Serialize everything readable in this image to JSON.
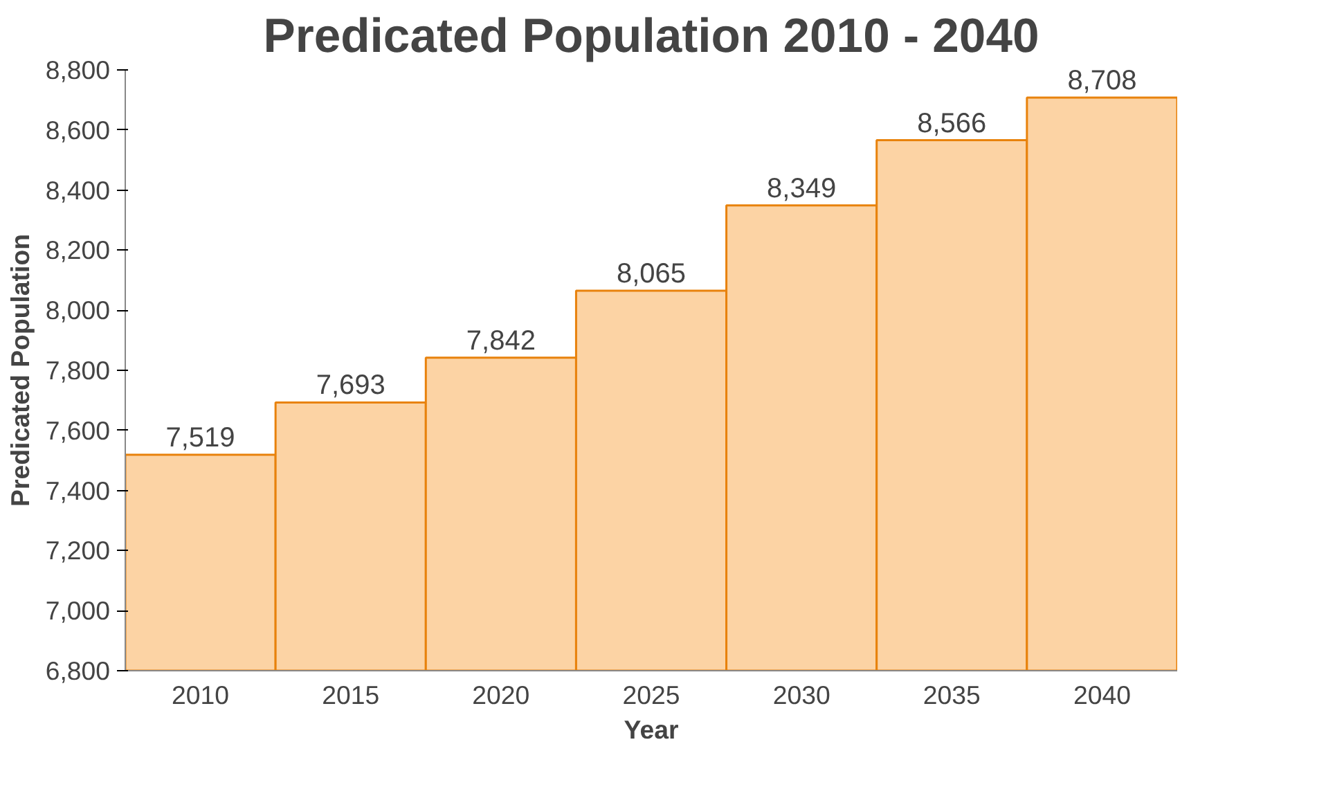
{
  "chart_data": {
    "type": "bar",
    "title": "Predicated Population 2010 - 2040",
    "xlabel": "Year",
    "ylabel": "Predicated Population",
    "categories": [
      "2010",
      "2015",
      "2020",
      "2025",
      "2030",
      "2035",
      "2040"
    ],
    "values": [
      7519,
      7693,
      7842,
      8065,
      8349,
      8566,
      8708
    ],
    "color": "#fcd3a4",
    "ylim": [
      6800,
      8800
    ],
    "yticks": [
      {
        "value": 6800,
        "label": "6,800"
      },
      {
        "value": 7000,
        "label": "7,000"
      },
      {
        "value": 7200,
        "label": "7,200"
      },
      {
        "value": 7400,
        "label": "7,400"
      },
      {
        "value": 7600,
        "label": "7,600"
      },
      {
        "value": 7800,
        "label": "7,800"
      },
      {
        "value": 8000,
        "label": "8,000"
      },
      {
        "value": 8200,
        "label": "8,200"
      },
      {
        "value": 8400,
        "label": "8,400"
      },
      {
        "value": 8600,
        "label": "8,600"
      },
      {
        "value": 8800,
        "label": "8,800"
      }
    ],
    "value_labels": [
      "7,519",
      "7,693",
      "7,842",
      "8,065",
      "8,349",
      "8,566",
      "8,708"
    ],
    "grid": false
  }
}
